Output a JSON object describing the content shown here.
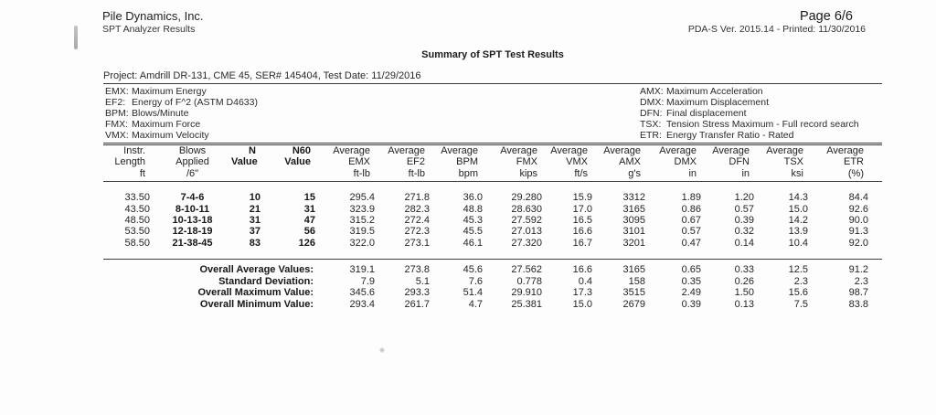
{
  "header": {
    "company": "Pile Dynamics, Inc.",
    "app": "SPT Analyzer Results",
    "page": "Page 6/6",
    "version": "PDA-S Ver. 2015.14 - Printed: 11/30/2016"
  },
  "title": "Summary of SPT Test Results",
  "project": "Project: Amdrill DR-131, CME 45, SER# 145404, Test Date: 11/29/2016",
  "legend": {
    "left": [
      {
        "term": "EMX:",
        "def": "Maximum Energy"
      },
      {
        "term": "EF2:",
        "def": "Energy of F^2 (ASTM D4633)"
      },
      {
        "term": "BPM:",
        "def": "Blows/Minute"
      },
      {
        "term": "FMX:",
        "def": "Maximum Force"
      },
      {
        "term": "VMX:",
        "def": "Maximum Velocity"
      }
    ],
    "right": [
      {
        "term": "AMX:",
        "def": "Maximum Acceleration"
      },
      {
        "term": "DMX:",
        "def": "Maximum Displacement"
      },
      {
        "term": "DFN:",
        "def": "Final displacement"
      },
      {
        "term": "TSX:",
        "def": "Tension Stress Maximum - Full record search"
      },
      {
        "term": "ETR:",
        "def": "Energy Transfer Ratio - Rated"
      }
    ]
  },
  "table": {
    "header_line1": [
      "Instr.",
      "Blows",
      "N",
      "N60",
      "Average",
      "Average",
      "Average",
      "Average",
      "Average",
      "Average",
      "Average",
      "Average",
      "Average",
      "Average"
    ],
    "header_line2": [
      "Length",
      "Applied",
      "Value",
      "Value",
      "EMX",
      "EF2",
      "BPM",
      "FMX",
      "VMX",
      "AMX",
      "DMX",
      "DFN",
      "TSX",
      "ETR"
    ],
    "header_line3": [
      "ft",
      "/6\"",
      "",
      "",
      "ft-lb",
      "ft-lb",
      "bpm",
      "kips",
      "ft/s",
      "g's",
      "in",
      "in",
      "ksi",
      "(%)"
    ],
    "header_bold_columns": [
      2,
      3
    ],
    "data_bold_columns": [
      1,
      2,
      3
    ],
    "rows": [
      [
        "33.50",
        "7-4-6",
        "10",
        "15",
        "295.4",
        "271.8",
        "36.0",
        "29.280",
        "15.9",
        "3312",
        "1.89",
        "1.20",
        "14.3",
        "84.4"
      ],
      [
        "43.50",
        "8-10-11",
        "21",
        "31",
        "323.9",
        "282.3",
        "48.8",
        "28.630",
        "17.0",
        "3165",
        "0.86",
        "0.57",
        "15.0",
        "92.6"
      ],
      [
        "48.50",
        "10-13-18",
        "31",
        "47",
        "315.2",
        "272.4",
        "45.3",
        "27.592",
        "16.5",
        "3095",
        "0.67",
        "0.39",
        "14.2",
        "90.0"
      ],
      [
        "53.50",
        "12-18-19",
        "37",
        "56",
        "319.5",
        "272.3",
        "45.5",
        "27.013",
        "16.6",
        "3101",
        "0.57",
        "0.32",
        "13.9",
        "91.3"
      ],
      [
        "58.50",
        "21-38-45",
        "83",
        "126",
        "322.0",
        "273.1",
        "46.1",
        "27.320",
        "16.7",
        "3201",
        "0.47",
        "0.14",
        "10.4",
        "92.0"
      ]
    ],
    "summary": [
      {
        "label": "Overall Average Values:",
        "values": [
          "319.1",
          "273.8",
          "45.6",
          "27.562",
          "16.6",
          "3165",
          "0.65",
          "0.33",
          "12.5",
          "91.2"
        ]
      },
      {
        "label": "Standard Deviation:",
        "values": [
          "7.9",
          "5.1",
          "7.6",
          "0.778",
          "0.4",
          "158",
          "0.35",
          "0.26",
          "2.3",
          "2.3"
        ]
      },
      {
        "label": "Overall Maximum Value:",
        "values": [
          "345.6",
          "293.3",
          "51.4",
          "29.910",
          "17.3",
          "3515",
          "2.49",
          "1.50",
          "15.6",
          "98.7"
        ]
      },
      {
        "label": "Overall Minimum Value:",
        "values": [
          "293.4",
          "261.7",
          "4.7",
          "25.381",
          "15.0",
          "2679",
          "0.39",
          "0.13",
          "7.5",
          "83.8"
        ]
      }
    ]
  }
}
